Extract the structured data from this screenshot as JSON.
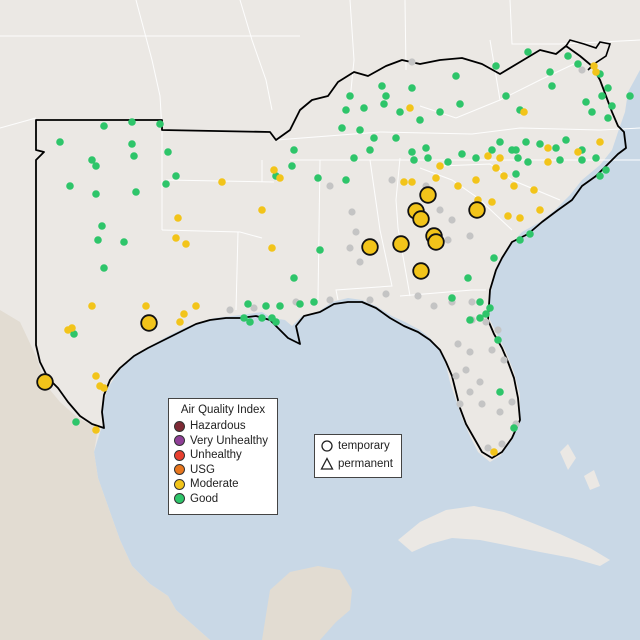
{
  "map": {
    "colors": {
      "water": "#c9d8e6",
      "land": "#ebe8e4",
      "land_south": "#e2dcd2",
      "state_border": "#ffffff",
      "region_outline": "#000000"
    }
  },
  "aqi_legend": {
    "title": "Air Quality Index",
    "items": [
      {
        "label": "Hazardous",
        "color": "#7e2a35"
      },
      {
        "label": "Very Unhealthy",
        "color": "#8f3f97"
      },
      {
        "label": "Unhealthy",
        "color": "#e8402f"
      },
      {
        "label": "USG",
        "color": "#e8761d"
      },
      {
        "label": "Moderate",
        "color": "#f2c41a"
      },
      {
        "label": "Good",
        "color": "#2ec56a"
      }
    ]
  },
  "type_legend": {
    "items": [
      {
        "label": "temporary",
        "shape": "circle-icon"
      },
      {
        "label": "permanent",
        "shape": "triangle-icon"
      }
    ]
  },
  "monitors": {
    "small_good_color": "#2ec56a",
    "small_moderate_color": "#f2c41a",
    "no_data_color": "#c4c4c4",
    "large_moderate_color": "#f2c41a"
  }
}
